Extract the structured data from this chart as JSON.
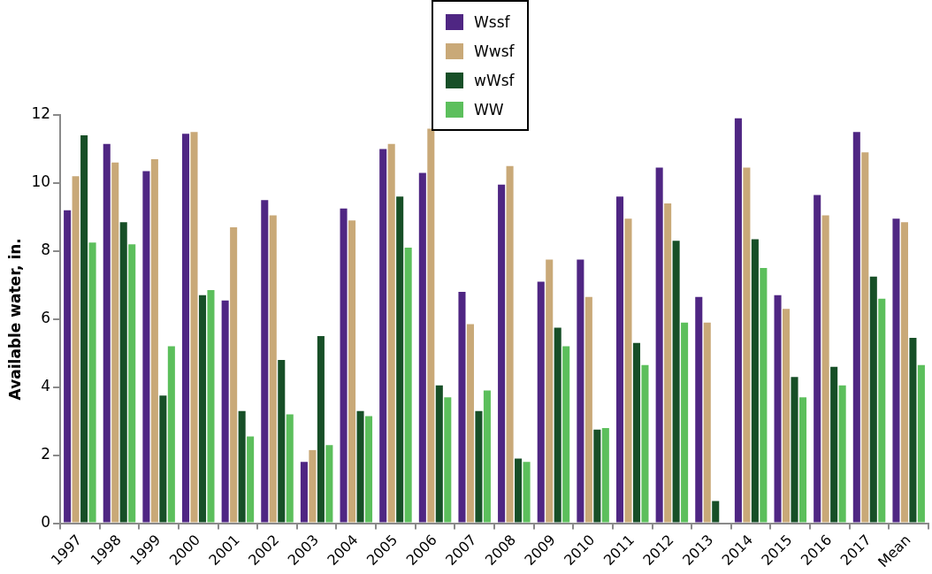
{
  "chart_data": {
    "type": "bar",
    "ylabel": "Available water, in.",
    "categories": [
      "1997",
      "1998",
      "1999",
      "2000",
      "2001",
      "2002",
      "2003",
      "2004",
      "2005",
      "2006",
      "2007",
      "2008",
      "2009",
      "2010",
      "2011",
      "2012",
      "2013",
      "2014",
      "2015",
      "2016",
      "2017",
      "Mean"
    ],
    "series": [
      {
        "name": "Wssf",
        "color": "#4f2683",
        "values": [
          9.2,
          11.15,
          10.35,
          11.45,
          6.55,
          9.5,
          1.8,
          9.25,
          11.0,
          10.3,
          6.8,
          9.95,
          7.1,
          7.75,
          9.6,
          10.45,
          6.65,
          11.9,
          6.7,
          9.65,
          11.5,
          8.95
        ]
      },
      {
        "name": "Wwsf",
        "color": "#c9a978",
        "values": [
          10.2,
          10.6,
          10.7,
          11.5,
          8.7,
          9.05,
          2.15,
          8.9,
          11.15,
          11.6,
          5.85,
          10.5,
          7.75,
          6.65,
          8.95,
          9.4,
          5.9,
          10.45,
          6.3,
          9.05,
          10.9,
          8.85
        ]
      },
      {
        "name": "wWsf",
        "color": "#174f27",
        "values": [
          11.4,
          8.85,
          3.75,
          6.7,
          3.3,
          4.8,
          5.5,
          3.3,
          9.6,
          4.05,
          3.3,
          1.9,
          5.75,
          2.75,
          5.3,
          8.3,
          0.65,
          8.35,
          4.3,
          4.6,
          7.25,
          5.45
        ]
      },
      {
        "name": "WW",
        "color": "#5cbf5c",
        "values": [
          8.25,
          8.2,
          5.2,
          6.85,
          2.55,
          3.2,
          2.3,
          3.15,
          8.1,
          3.7,
          3.9,
          1.8,
          5.2,
          2.8,
          4.65,
          5.9,
          null,
          7.5,
          3.7,
          4.05,
          6.6,
          4.65
        ]
      }
    ],
    "ylim": [
      0,
      12
    ],
    "yticks": [
      0,
      2,
      4,
      6,
      8,
      10,
      12
    ],
    "grid": false,
    "legend": "top"
  }
}
